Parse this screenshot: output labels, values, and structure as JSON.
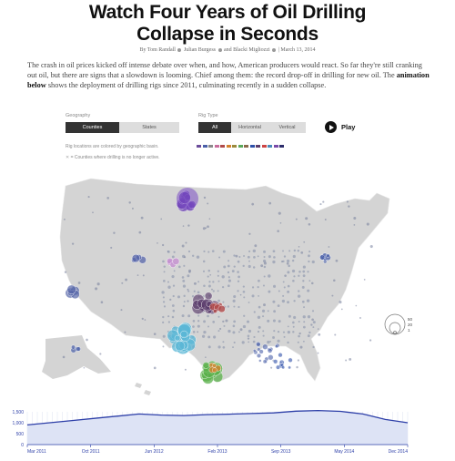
{
  "header": {
    "title_line1": "Watch Four Years of Oil Drilling",
    "title_line2": "Collapse in Seconds",
    "byline_prefix": "By Tom Randall",
    "author2": "Julian Burgess",
    "author3": "and Blacki Migliozzi",
    "date": "| March 13, 2014"
  },
  "intro": {
    "text_part1": "The crash in oil prices kicked off intense debate over when, and how, American producers would react. So far they're still cranking out oil, but there are signs that a slowdown is looming. Chief among them: the record drop-off in drilling for new oil. The ",
    "text_bold": "animation below",
    "text_part2": " shows the deployment of drilling rigs since 2011, culminating recently in a sudden collapse."
  },
  "controls": {
    "geography_label": "Geography",
    "geography_options": [
      "Counties",
      "States"
    ],
    "rig_type_label": "Rig Type",
    "rig_type_options": [
      "All",
      "Horizontal",
      "Vertical"
    ],
    "play_label": "Play"
  },
  "notes": {
    "basin_note": "Rig locations are colored by geographic basin.",
    "counties_note": "= Counties where drilling is no longer active."
  },
  "basin_colors": [
    "#6b4c9a",
    "#4a5fa8",
    "#8a8a8a",
    "#c86c9d",
    "#b04a4a",
    "#d4832e",
    "#9a8a3c",
    "#5aa85a",
    "#8a6a4a",
    "#2d4fa8",
    "#5b3c6b",
    "#cc4444",
    "#4a8aba",
    "#7a4aa8",
    "#2d2d6b"
  ],
  "legend": {
    "size_labels": [
      "50",
      "20",
      "1"
    ]
  },
  "timeline": {
    "y_ticks": [
      "1,500",
      "1,000",
      "500",
      "0"
    ],
    "x_ticks": [
      "Mar 2011",
      "Oct 2011",
      "Jun 2012",
      "Feb 2013",
      "Sep 2013",
      "May 2014",
      "Dec 2014"
    ]
  },
  "chart_data": {
    "type": "area",
    "x": [
      "Jan 2011",
      "Mar 2011",
      "Jun 2011",
      "Oct 2011",
      "Jan 2012",
      "Jun 2012",
      "Oct 2012",
      "Feb 2013",
      "Jun 2013",
      "Sep 2013",
      "Jan 2014",
      "May 2014",
      "Aug 2014",
      "Oct 2014",
      "Dec 2014",
      "Jan 2015",
      "Feb 2015",
      "Mar 2015"
    ],
    "values": [
      900,
      1000,
      1100,
      1200,
      1300,
      1400,
      1350,
      1330,
      1370,
      1390,
      1420,
      1450,
      1530,
      1560,
      1520,
      1400,
      1150,
      1000
    ],
    "ylim": [
      0,
      1500
    ]
  }
}
